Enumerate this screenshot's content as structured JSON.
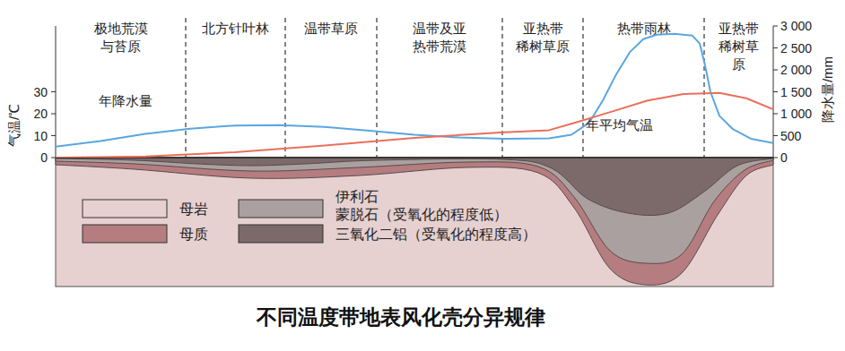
{
  "chart_data": {
    "type": "line",
    "title": "不同温度带地表风化壳分异规律",
    "ylabel": "气温/℃",
    "y2label": "降水量/mm",
    "xlim": [
      0,
      800
    ],
    "ylim": [
      0,
      60
    ],
    "yticks": [
      0,
      10,
      20,
      30
    ],
    "y2lim": [
      0,
      3000
    ],
    "y2ticks": [
      0,
      500,
      {
        "value": 1000,
        "label": "1 000"
      },
      {
        "value": 1500,
        "label": "1 500"
      },
      {
        "value": 2000,
        "label": "2 000"
      },
      {
        "value": 2500,
        "label": "2 500"
      },
      {
        "value": 3000,
        "label": "3 000"
      }
    ],
    "tick_labels": "y",
    "zones": [
      {
        "label": [
          "极地荒漠",
          "与苔原"
        ],
        "start": 0,
        "end": 145
      },
      {
        "label": [
          "北方针叶林"
        ],
        "start": 145,
        "end": 256
      },
      {
        "label": [
          "温带草原"
        ],
        "start": 256,
        "end": 358
      },
      {
        "label": [
          "温带及亚",
          "热带荒漠"
        ],
        "start": 358,
        "end": 498
      },
      {
        "label": [
          "亚热带",
          "稀树草原"
        ],
        "start": 498,
        "end": 588
      },
      {
        "label": [
          "热带雨林"
        ],
        "start": 588,
        "end": 723
      },
      {
        "label": [
          "亚热带",
          "稀树草",
          "原"
        ],
        "start": 723,
        "end": 800
      }
    ],
    "series": [
      {
        "name": "年降水量",
        "color": "#5aa6e0",
        "axis": "y2",
        "x": [
          0,
          50,
          100,
          150,
          200,
          250,
          300,
          350,
          400,
          450,
          500,
          550,
          575,
          595,
          610,
          625,
          640,
          655,
          670,
          690,
          710,
          718,
          724,
          730,
          740,
          755,
          775,
          800
        ],
        "values": [
          250,
          380,
          540,
          660,
          730,
          740,
          700,
          610,
          520,
          460,
          430,
          440,
          520,
          800,
          1300,
          1900,
          2400,
          2700,
          2800,
          2820,
          2780,
          2600,
          2100,
          1500,
          950,
          650,
          430,
          330
        ]
      },
      {
        "name": "年平均气温",
        "color": "#e8705a",
        "x": [
          0,
          100,
          200,
          300,
          400,
          500,
          550,
          580,
          620,
          660,
          700,
          740,
          770,
          800
        ],
        "values": [
          0,
          0.5,
          2.5,
          5.5,
          9,
          11.5,
          12.5,
          16,
          21,
          26,
          29,
          29.5,
          27,
          22
        ]
      }
    ],
    "cross_section_legend": [
      {
        "name": [
          "母岩"
        ],
        "color": "#e6d0d0"
      },
      {
        "name": [
          "母质"
        ],
        "color": "#b57d80"
      },
      {
        "name": [
          "伊利石",
          "蒙脱石（受氧化的程度低）"
        ],
        "color": "#aaa0a0"
      },
      {
        "name": [
          "三氧化二铝（受氧化的程度高）"
        ],
        "color": "#7c6a6b"
      }
    ]
  }
}
